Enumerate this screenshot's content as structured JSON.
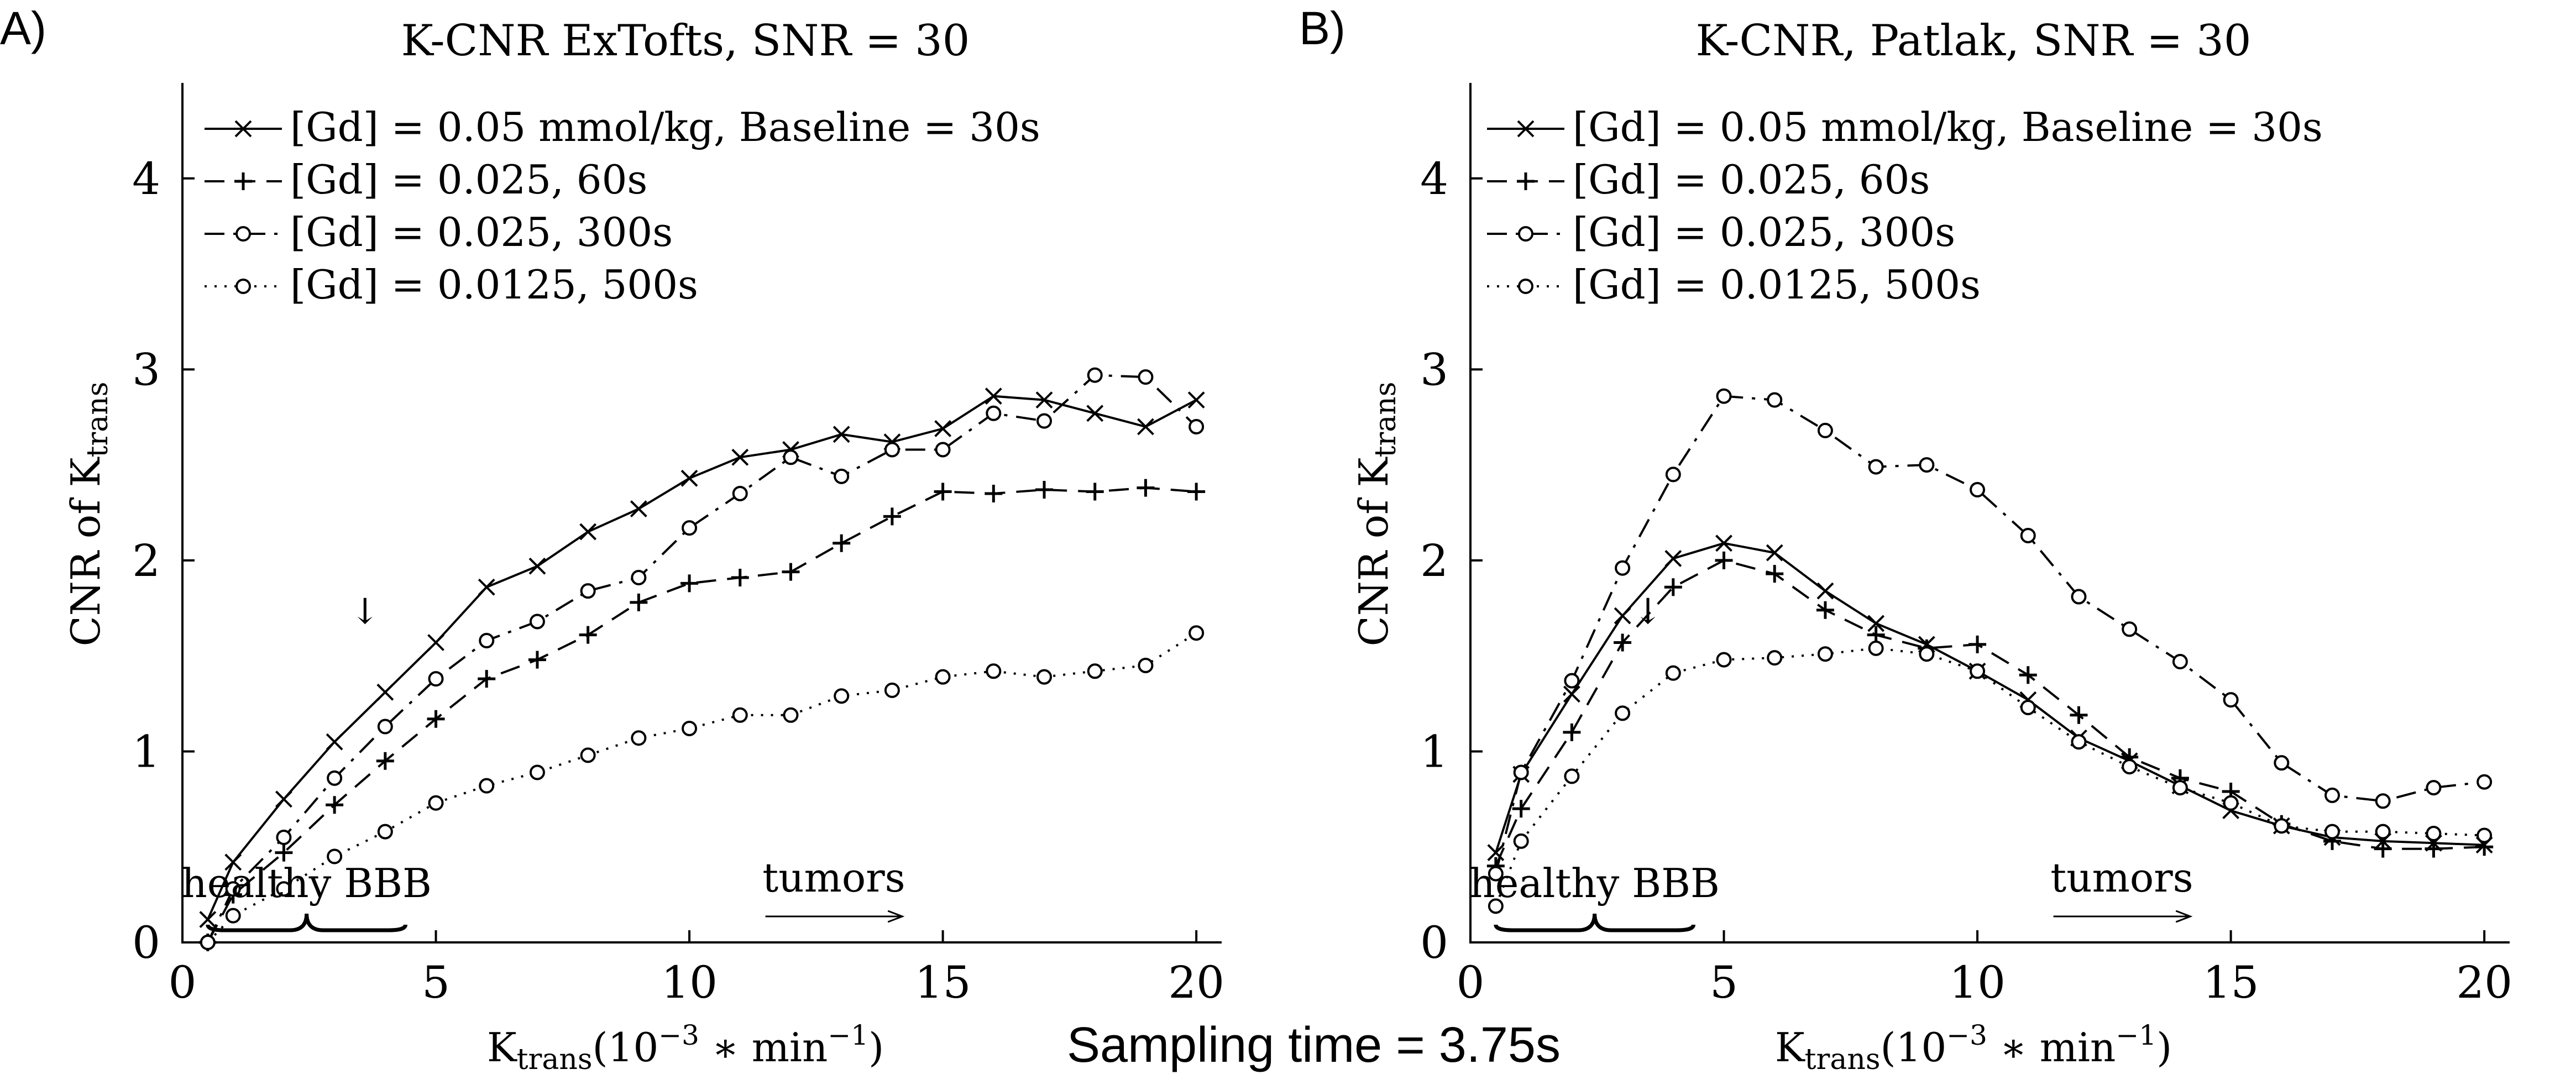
{
  "footer": {
    "caption": "Sampling time = 3.75s"
  },
  "styles": {
    "ink": "#000000",
    "background": "#ffffff"
  },
  "chart_data": [
    {
      "panel_label": "A)",
      "type": "line",
      "title": "K-CNR ExTofts, SNR = 30",
      "xlabel_main": "K",
      "xlabel_sub": "trans",
      "xlabel_unit": "(10",
      "xlabel_exp": "−3",
      "xlabel_rest": " ∗ min",
      "xlabel_exp2": "−1",
      "xlabel_close": ")",
      "ylabel_main": "CNR of K",
      "ylabel_sub": "trans",
      "xlim": [
        0,
        20.5
      ],
      "ylim": [
        0,
        4.5
      ],
      "xticks": [
        0,
        5,
        10,
        15,
        20
      ],
      "yticks": [
        0,
        1,
        2,
        3,
        4
      ],
      "legend_position": "top-left",
      "annotations": {
        "healthy": "healthy BBB",
        "tumors": "tumors",
        "arrow_glyph": "↓",
        "arrow_at": [
          3.6,
          1.67
        ],
        "brace_range": [
          0.5,
          4.4
        ],
        "tumor_arrow_range": [
          11.5,
          14.2
        ]
      },
      "series": [
        {
          "name": "[Gd] = 0.05 mmol/kg, Baseline = 30s",
          "marker": "x",
          "dash": "solid",
          "x": [
            0.5,
            1,
            2,
            3,
            4,
            5,
            6,
            7,
            8,
            9,
            10,
            11,
            12,
            13,
            14,
            15,
            16,
            17,
            18,
            19,
            20
          ],
          "values": [
            0.12,
            0.42,
            0.75,
            1.05,
            1.31,
            1.57,
            1.86,
            1.97,
            2.15,
            2.27,
            2.43,
            2.54,
            2.58,
            2.66,
            2.62,
            2.69,
            2.86,
            2.84,
            2.77,
            2.7,
            2.84
          ]
        },
        {
          "name": "[Gd] = 0.025, 60s",
          "marker": "+",
          "dash": "dashed",
          "x": [
            0.5,
            1,
            2,
            3,
            4,
            5,
            6,
            7,
            8,
            9,
            10,
            11,
            12,
            13,
            14,
            15,
            16,
            17,
            18,
            19,
            20
          ],
          "values": [
            0.0,
            0.25,
            0.47,
            0.72,
            0.95,
            1.17,
            1.38,
            1.48,
            1.61,
            1.78,
            1.88,
            1.91,
            1.94,
            2.09,
            2.23,
            2.36,
            2.35,
            2.37,
            2.36,
            2.38,
            2.36
          ]
        },
        {
          "name": "[Gd] = 0.025, 300s",
          "marker": "o",
          "dash": "dashdot",
          "x": [
            0.5,
            1,
            2,
            3,
            4,
            5,
            6,
            7,
            8,
            9,
            10,
            11,
            12,
            13,
            14,
            15,
            16,
            17,
            18,
            19,
            20
          ],
          "values": [
            0.0,
            0.28,
            0.55,
            0.86,
            1.13,
            1.38,
            1.58,
            1.68,
            1.84,
            1.91,
            2.17,
            2.35,
            2.54,
            2.44,
            2.58,
            2.58,
            2.77,
            2.73,
            2.97,
            2.96,
            2.7
          ]
        },
        {
          "name": "[Gd] = 0.0125, 500s",
          "marker": "o",
          "dash": "dotted",
          "x": [
            0.5,
            1,
            2,
            3,
            4,
            5,
            6,
            7,
            8,
            9,
            10,
            11,
            12,
            13,
            14,
            15,
            16,
            17,
            18,
            19,
            20
          ],
          "values": [
            0.0,
            0.14,
            0.28,
            0.45,
            0.58,
            0.73,
            0.82,
            0.89,
            0.98,
            1.07,
            1.12,
            1.19,
            1.19,
            1.29,
            1.32,
            1.39,
            1.42,
            1.39,
            1.42,
            1.45,
            1.62
          ]
        }
      ]
    },
    {
      "panel_label": "B)",
      "type": "line",
      "title": "K-CNR, Patlak, SNR = 30",
      "xlabel_main": "K",
      "xlabel_sub": "trans",
      "xlabel_unit": "(10",
      "xlabel_exp": "−3",
      "xlabel_rest": " ∗ min",
      "xlabel_exp2": "−1",
      "xlabel_close": ")",
      "ylabel_main": "CNR of K",
      "ylabel_sub": "trans",
      "xlim": [
        0,
        20.5
      ],
      "ylim": [
        0,
        4.5
      ],
      "xticks": [
        0,
        5,
        10,
        15,
        20
      ],
      "yticks": [
        0,
        1,
        2,
        3,
        4
      ],
      "legend_position": "top-left",
      "annotations": {
        "healthy": "healthy BBB",
        "tumors": "tumors",
        "arrow_glyph": "↓",
        "arrow_at": [
          3.5,
          1.67
        ],
        "brace_range": [
          0.5,
          4.4
        ],
        "tumor_arrow_range": [
          11.5,
          14.2
        ]
      },
      "series": [
        {
          "name": "[Gd] = 0.05 mmol/kg, Baseline = 30s",
          "marker": "x",
          "dash": "solid",
          "x": [
            0.5,
            1,
            2,
            3,
            4,
            5,
            6,
            7,
            8,
            9,
            10,
            11,
            12,
            13,
            14,
            15,
            16,
            17,
            18,
            19,
            20
          ],
          "values": [
            0.47,
            0.88,
            1.3,
            1.71,
            2.01,
            2.09,
            2.04,
            1.84,
            1.67,
            1.56,
            1.42,
            1.27,
            1.07,
            0.95,
            0.82,
            0.69,
            0.61,
            0.55,
            0.53,
            0.52,
            0.51
          ]
        },
        {
          "name": "[Gd] = 0.025, 60s",
          "marker": "+",
          "dash": "dashed",
          "x": [
            0.5,
            1,
            2,
            3,
            4,
            5,
            6,
            7,
            8,
            9,
            10,
            11,
            12,
            13,
            14,
            15,
            16,
            17,
            18,
            19,
            20
          ],
          "values": [
            0.4,
            0.7,
            1.1,
            1.57,
            1.86,
            2.0,
            1.93,
            1.74,
            1.61,
            1.54,
            1.56,
            1.4,
            1.19,
            0.97,
            0.86,
            0.79,
            0.62,
            0.53,
            0.49,
            0.49,
            0.5
          ]
        },
        {
          "name": "[Gd] = 0.025, 300s",
          "marker": "o",
          "dash": "dashdot",
          "x": [
            0.5,
            1,
            2,
            3,
            4,
            5,
            6,
            7,
            8,
            9,
            10,
            11,
            12,
            13,
            14,
            15,
            16,
            17,
            18,
            19,
            20
          ],
          "values": [
            0.36,
            0.89,
            1.37,
            1.96,
            2.45,
            2.86,
            2.84,
            2.68,
            2.49,
            2.5,
            2.37,
            2.13,
            1.81,
            1.64,
            1.47,
            1.27,
            0.94,
            0.77,
            0.74,
            0.81,
            0.84
          ]
        },
        {
          "name": "[Gd] = 0.0125, 500s",
          "marker": "o",
          "dash": "dotted",
          "x": [
            0.5,
            1,
            2,
            3,
            4,
            5,
            6,
            7,
            8,
            9,
            10,
            11,
            12,
            13,
            14,
            15,
            16,
            17,
            18,
            19,
            20
          ],
          "values": [
            0.19,
            0.53,
            0.87,
            1.2,
            1.41,
            1.48,
            1.49,
            1.51,
            1.54,
            1.51,
            1.42,
            1.23,
            1.05,
            0.92,
            0.81,
            0.73,
            0.61,
            0.58,
            0.58,
            0.57,
            0.56
          ]
        }
      ]
    }
  ]
}
